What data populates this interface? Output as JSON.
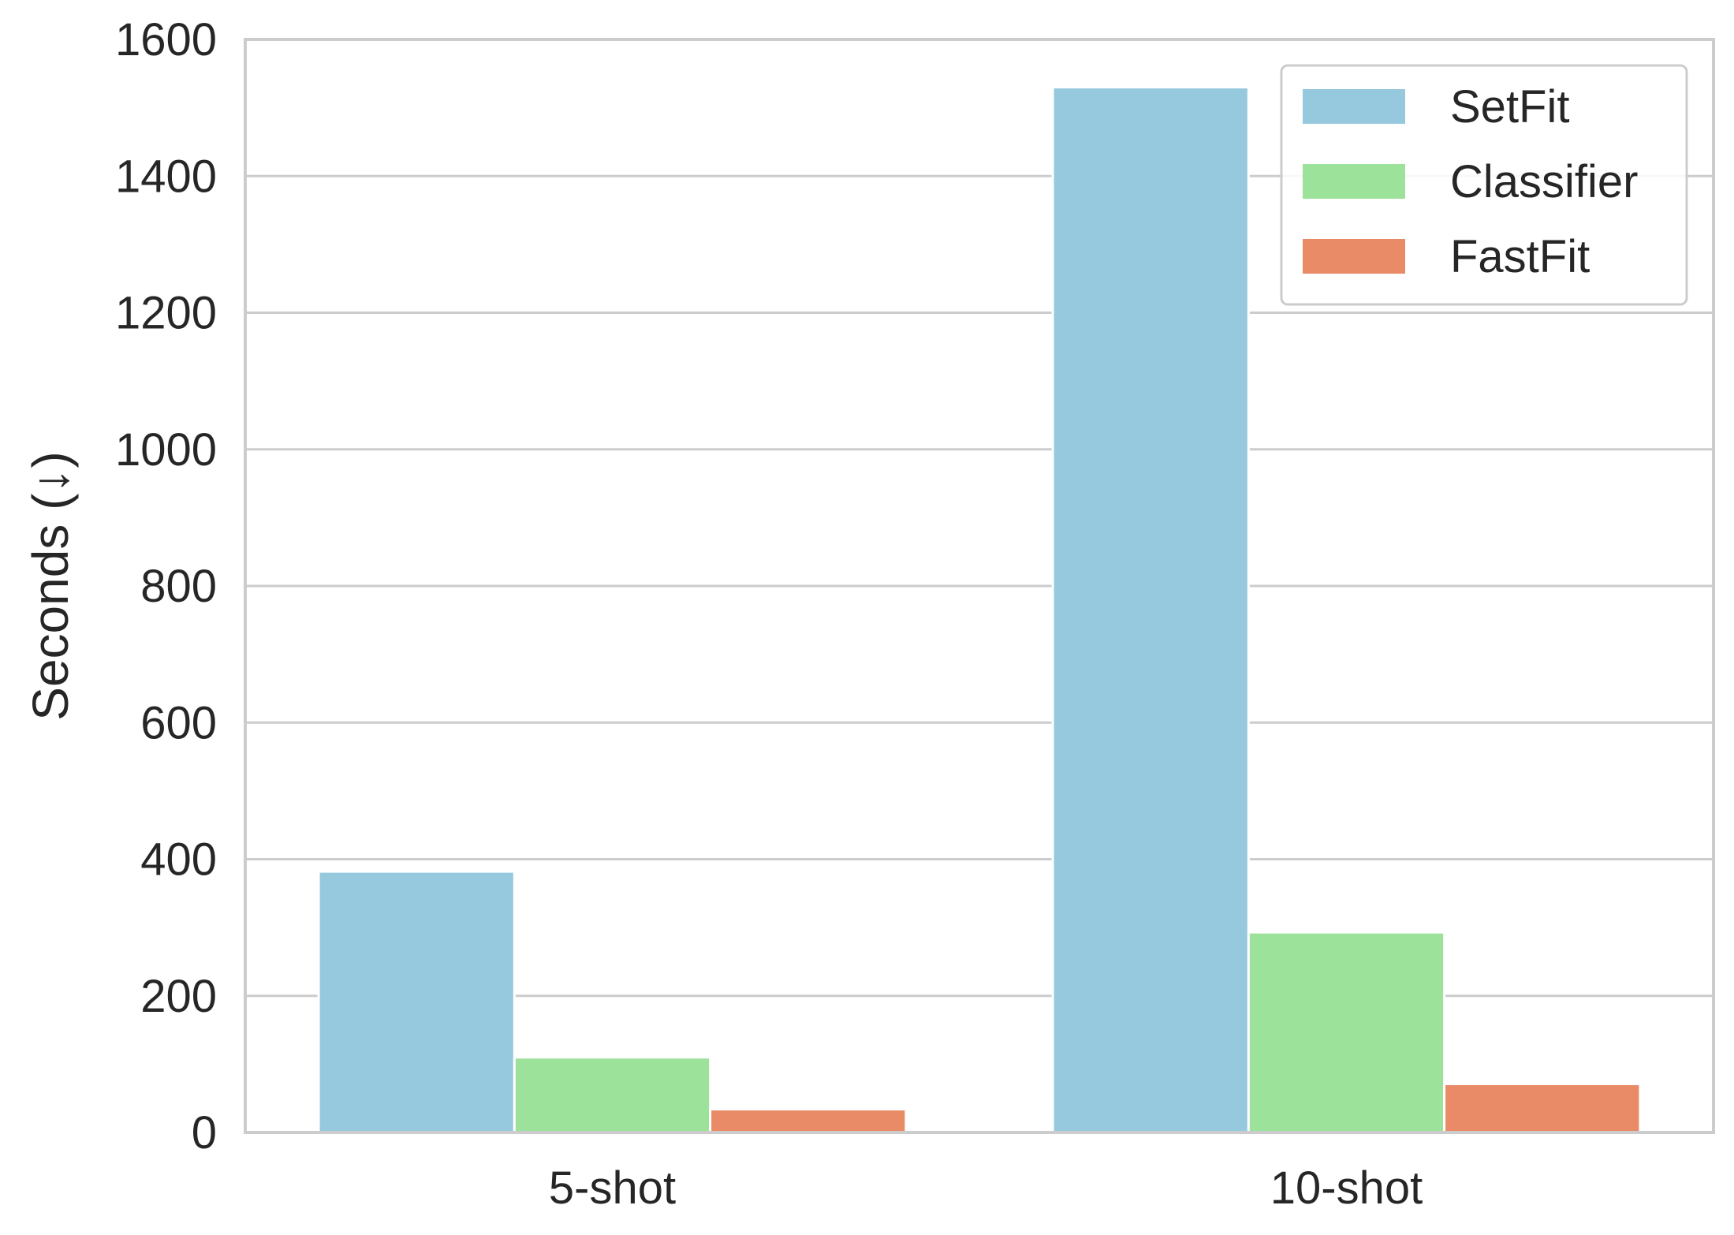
{
  "chart_data": {
    "type": "bar",
    "title": "",
    "xlabel": "",
    "ylabel": "Seconds (↓)",
    "ylim": [
      0,
      1600
    ],
    "yticks": [
      "0",
      "200",
      "400",
      "600",
      "800",
      "1000",
      "1200",
      "1400",
      "1600"
    ],
    "categories": [
      "5-shot",
      "10-shot"
    ],
    "series": [
      {
        "name": "SetFit",
        "color": "#97c9de",
        "values": [
          382,
          1530
        ]
      },
      {
        "name": "Classifier",
        "color": "#9de29a",
        "values": [
          110,
          293
        ]
      },
      {
        "name": "FastFit",
        "color": "#ea8b67",
        "values": [
          34,
          71
        ]
      }
    ],
    "grid": "horizontal",
    "legend_position": "top-right"
  }
}
